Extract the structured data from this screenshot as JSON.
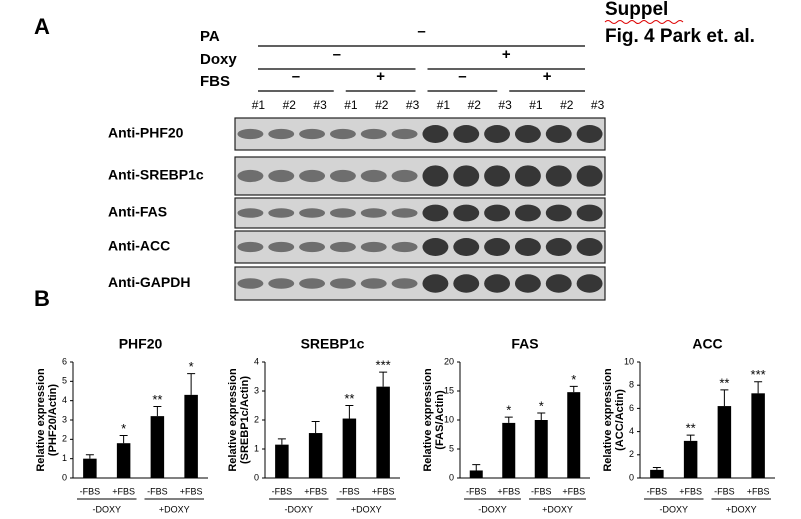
{
  "header": {
    "panel_a": "A",
    "panel_b": "B",
    "note": "Suppel",
    "figure": "Fig. 4 Park et. al."
  },
  "conditions": [
    {
      "label": "PA",
      "groups": [
        "–"
      ]
    },
    {
      "label": "Doxy",
      "groups": [
        "–",
        "+"
      ]
    },
    {
      "label": "FBS",
      "groups": [
        "–",
        "+",
        "–",
        "+"
      ]
    }
  ],
  "lanes": [
    "#1",
    "#2",
    "#3",
    "#1",
    "#2",
    "#3",
    "#1",
    "#2",
    "#3",
    "#1",
    "#2",
    "#3"
  ],
  "antibodies": [
    "Anti-PHF20",
    "Anti-SREBP1c",
    "Anti-FAS",
    "Anti-ACC",
    "Anti-GAPDH"
  ],
  "chart_data": [
    {
      "type": "bar",
      "title": "PHF20",
      "ylabel": [
        "Relative expression",
        "(PHF20/Actin)"
      ],
      "categories": [
        "-FBS",
        "+FBS",
        "-FBS",
        "+FBS"
      ],
      "groups": [
        "-DOXY",
        "+DOXY"
      ],
      "values": [
        1.0,
        1.8,
        3.2,
        4.3
      ],
      "errors": [
        0.2,
        0.4,
        0.5,
        1.1
      ],
      "annotations": [
        null,
        "*",
        "**",
        "*"
      ],
      "color": "#000000",
      "ylim": [
        0,
        6
      ],
      "yticks": [
        0,
        1,
        2,
        3,
        4,
        5,
        6
      ]
    },
    {
      "type": "bar",
      "title": "SREBP1c",
      "ylabel": [
        "Relative expression",
        "(SREBP1c/Actin)"
      ],
      "categories": [
        "-FBS",
        "+FBS",
        "-FBS",
        "+FBS"
      ],
      "groups": [
        "-DOXY",
        "+DOXY"
      ],
      "values": [
        1.15,
        1.55,
        2.05,
        3.15
      ],
      "errors": [
        0.2,
        0.4,
        0.45,
        0.5
      ],
      "annotations": [
        null,
        null,
        "**",
        "***"
      ],
      "color": "#000000",
      "ylim": [
        0,
        4
      ],
      "yticks": [
        0,
        1,
        2,
        3,
        4
      ]
    },
    {
      "type": "bar",
      "title": "FAS",
      "ylabel": [
        "Relative expression",
        "(FAS/Actin)"
      ],
      "categories": [
        "-FBS",
        "+FBS",
        "-FBS",
        "+FBS"
      ],
      "groups": [
        "-DOXY",
        "+DOXY"
      ],
      "values": [
        1.3,
        9.5,
        10.0,
        14.8
      ],
      "errors": [
        1.0,
        1.0,
        1.2,
        1.0
      ],
      "annotations": [
        null,
        "*",
        "*",
        "*"
      ],
      "color": "#000000",
      "ylim": [
        0,
        20
      ],
      "yticks": [
        0,
        5,
        10,
        15,
        20
      ]
    },
    {
      "type": "bar",
      "title": "ACC",
      "ylabel": [
        "Relative expression",
        "(ACC/Actin)"
      ],
      "categories": [
        "-FBS",
        "+FBS",
        "-FBS",
        "+FBS"
      ],
      "groups": [
        "-DOXY",
        "+DOXY"
      ],
      "values": [
        0.7,
        3.2,
        6.2,
        7.3
      ],
      "errors": [
        0.2,
        0.5,
        1.4,
        1.0
      ],
      "annotations": [
        null,
        "**",
        "**",
        "***"
      ],
      "color": "#000000",
      "ylim": [
        0,
        10
      ],
      "yticks": [
        0,
        2,
        4,
        6,
        8,
        10
      ]
    }
  ]
}
